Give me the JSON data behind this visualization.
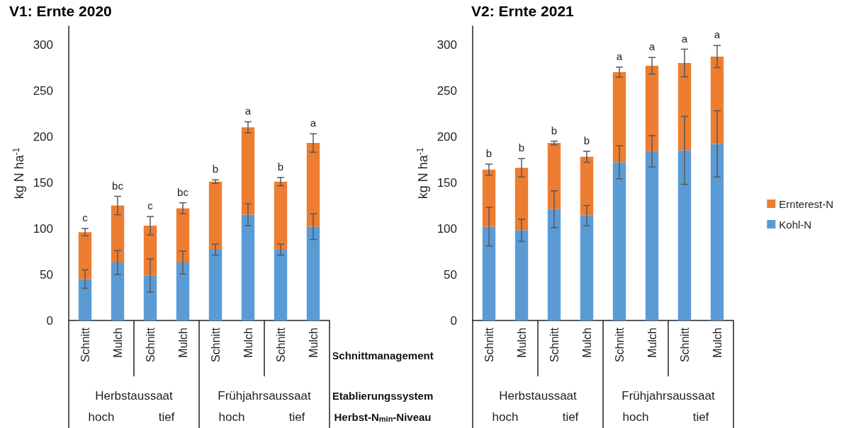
{
  "chart_data": [
    {
      "type": "bar",
      "title": "V1: Ernte 2020",
      "ylabel": "kg N ha$^{-1}$",
      "stacked": true,
      "grid": false,
      "legend": false,
      "categories": [
        "Schnitt",
        "Mulch",
        "Schnitt",
        "Mulch",
        "Schnitt",
        "Mulch",
        "Schnitt",
        "Mulch"
      ],
      "ylim": [
        0,
        320
      ],
      "yticks": [
        0,
        50,
        100,
        150,
        200,
        250,
        300
      ],
      "series": [
        {
          "color": "#5b9bd5",
          "values": [
            45,
            63,
            49,
            63,
            77,
            115,
            77,
            102
          ],
          "errors": [
            10,
            13,
            18,
            12.5,
            6,
            12,
            6,
            14
          ]
        },
        {
          "color": "#ed7d31",
          "values": [
            51,
            62,
            54,
            59,
            74,
            95,
            74,
            91
          ],
          "errors": [
            4,
            10,
            10,
            6,
            2,
            6,
            4.5,
            10
          ]
        }
      ],
      "annotations": [
        "c",
        "bc",
        "c",
        "bc",
        "b",
        "a",
        "b",
        "a",
        "Herbstaussaat",
        "Frühjahrsaussaat",
        "hoch",
        "tief",
        "hoch",
        "tief"
      ]
    },
    {
      "type": "bar",
      "title": "V2: Ernte 2021",
      "ylabel": "kg N ha$^{-1}$",
      "stacked": true,
      "grid": false,
      "legend": "right",
      "categories": [
        "Schnitt",
        "Mulch",
        "Schnitt",
        "Mulch",
        "Schnitt",
        "Mulch",
        "Schnitt",
        "Mulch"
      ],
      "ylim": [
        0,
        320
      ],
      "yticks": [
        0,
        50,
        100,
        150,
        200,
        250,
        300
      ],
      "series": [
        {
          "name": "Kohl-N",
          "color": "#5b9bd5",
          "values": [
            102,
            98,
            121,
            114,
            172,
            184,
            185,
            192
          ],
          "errors": [
            21,
            12,
            20,
            11,
            18,
            17,
            37,
            36
          ]
        },
        {
          "name": "Ernterest-N",
          "color": "#ed7d31",
          "values": [
            62,
            68,
            72,
            64,
            98,
            93,
            95,
            95
          ],
          "errors": [
            6,
            10,
            2,
            6,
            5.5,
            9,
            15,
            12
          ]
        }
      ],
      "annotations": [
        "b",
        "b",
        "b",
        "b",
        "a",
        "a",
        "a",
        "a",
        "Herbstaussaat",
        "Frühjahrsaussaat",
        "hoch",
        "tief",
        "hoch",
        "tief",
        "Schnittmanagement",
        "Etablierungssystem",
        "Herbst-N$_{min}$-Niveau"
      ]
    }
  ]
}
